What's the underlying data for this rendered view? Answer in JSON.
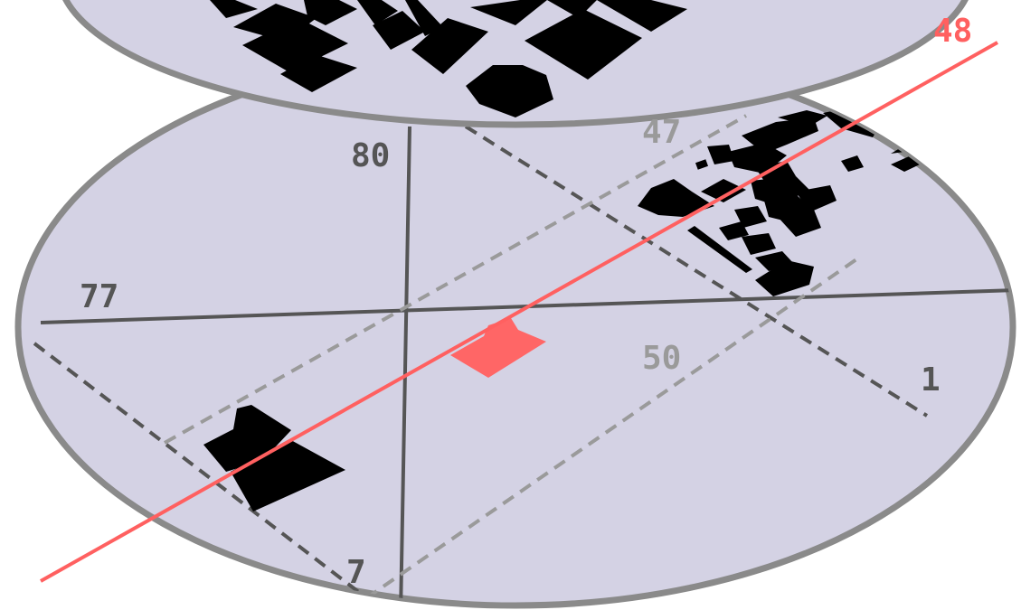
{
  "labels": {
    "line_48": "48",
    "line_47": "47",
    "line_80": "80",
    "line_77": "77",
    "line_50": "50",
    "line_1": "1",
    "line_7": "7"
  },
  "colors": {
    "disc_fill": "#d4d2e4",
    "disc_stroke": "#8a8a8a",
    "building": "#000000",
    "highlight": "#ff6666",
    "axis_line": "#555555",
    "dashed_dark": "#555555",
    "dashed_light": "#9a9a9a",
    "red_line": "#ff6060"
  }
}
